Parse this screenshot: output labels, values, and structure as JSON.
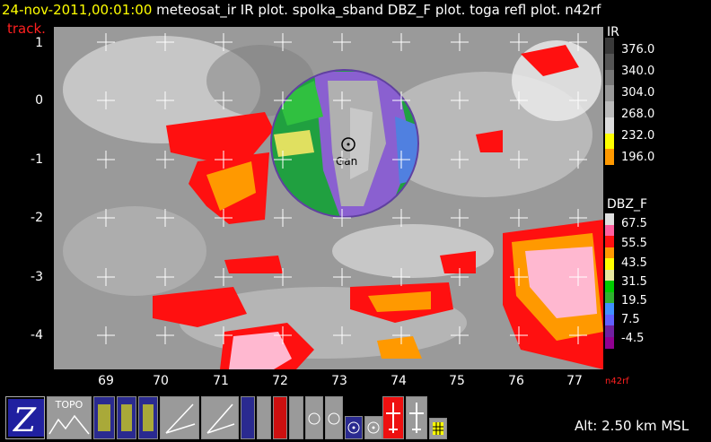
{
  "header": {
    "date": "24-nov-2011,00:01:00",
    "rest": "meteosat_ir IR  plot.  spolka_sband DBZ_F  plot.  toga refl plot. n42rf",
    "track": "track."
  },
  "map": {
    "x_ticks": [
      "69",
      "70",
      "71",
      "72",
      "73",
      "74",
      "75",
      "76",
      "77"
    ],
    "y_ticks": [
      "1",
      "0",
      "-1",
      "-2",
      "-3",
      "-4"
    ],
    "radar_label": "Gan"
  },
  "ir_colorbar": {
    "title": "IR",
    "labels": [
      "376.0",
      "340.0",
      "304.0",
      "268.0",
      "232.0",
      "196.0"
    ],
    "colors": [
      "#3a3a3a",
      "#555555",
      "#777777",
      "#999999",
      "#bbbbbb",
      "#dddddd",
      "#ffff00",
      "#ff9900"
    ]
  },
  "dbz_colorbar": {
    "title": "DBZ_F",
    "labels": [
      "67.5",
      "55.5",
      "43.5",
      "31.5",
      "19.5",
      "7.5",
      "-4.5"
    ],
    "colors": [
      "#e0e0e0",
      "#ff60a0",
      "#ff1010",
      "#ff9900",
      "#ffff00",
      "#e8e8a0",
      "#00cc00",
      "#30b030",
      "#4090ff",
      "#6060ff",
      "#7020a0",
      "#900090"
    ]
  },
  "footer": {
    "aircraft": "n42rf",
    "altitude": "Alt: 2.50 km MSL"
  },
  "toolbar": {
    "topo": "TOPO"
  }
}
